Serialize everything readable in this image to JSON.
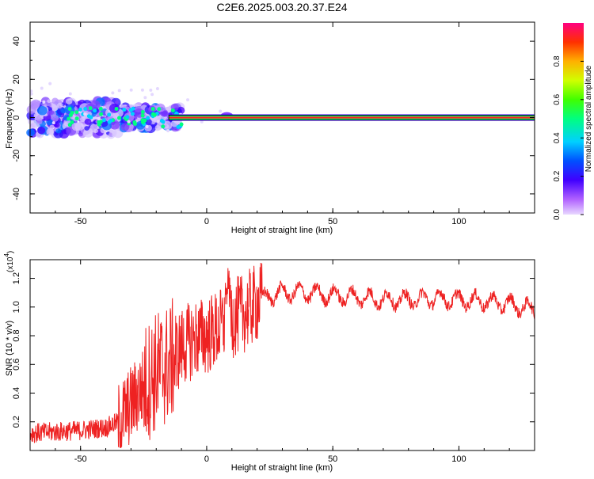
{
  "title": "C2E6.2025.003.20.37.E24",
  "chart_data": [
    {
      "type": "heatmap",
      "xlabel": "Height of straight line (km)",
      "ylabel": "Frequency (Hz)",
      "xlim": [
        -70,
        130
      ],
      "ylim": [
        -50,
        50
      ],
      "xticks": [
        "-50",
        "0",
        "50",
        "100"
      ],
      "yticks": [
        "40",
        "20",
        "0",
        "-20",
        "-40"
      ],
      "colorbar": {
        "label": "Normalized spectral amplitude",
        "range": [
          0,
          1
        ],
        "ticks": [
          "0.0",
          "0.2",
          "0.4",
          "0.6",
          "0.8"
        ]
      },
      "line": {
        "x_start": -15,
        "x_end": 130,
        "y": 0,
        "amplitude": 1.0
      },
      "colors": {
        "band_outer": "#3e00ff",
        "band_mid": "#00ff60",
        "band_core": "#ff2020"
      }
    },
    {
      "type": "line",
      "xlabel": "Height of straight line (km)",
      "ylabel": "SNR (10 * v/v)",
      "multiplier": "(x10^4)",
      "multiplier_base": "(x10",
      "multiplier_exp": "4",
      "multiplier_close": ")",
      "xlim": [
        -70,
        130
      ],
      "ylim": [
        0,
        1.33
      ],
      "xticks": [
        "-50",
        "0",
        "50",
        "100"
      ],
      "yticks": [
        "0.2",
        "0.4",
        "0.6",
        "0.8",
        "1.0",
        "1.2"
      ],
      "color": "#ee2222",
      "series_envelope": {
        "x": [
          -70,
          -60,
          -50,
          -40,
          -35,
          -30,
          -25,
          -20,
          -15,
          -10,
          -5,
          0,
          5,
          8,
          10,
          15,
          20,
          25,
          30,
          40,
          50,
          60,
          70,
          80,
          90,
          100,
          110,
          120,
          130
        ],
        "y": [
          0.12,
          0.13,
          0.14,
          0.16,
          0.2,
          0.32,
          0.45,
          0.55,
          0.6,
          0.72,
          0.78,
          0.8,
          0.85,
          0.9,
          0.92,
          0.96,
          1.03,
          1.08,
          1.1,
          1.1,
          1.08,
          1.07,
          1.05,
          1.05,
          1.06,
          1.05,
          1.04,
          1.02,
          0.98
        ]
      }
    }
  ]
}
